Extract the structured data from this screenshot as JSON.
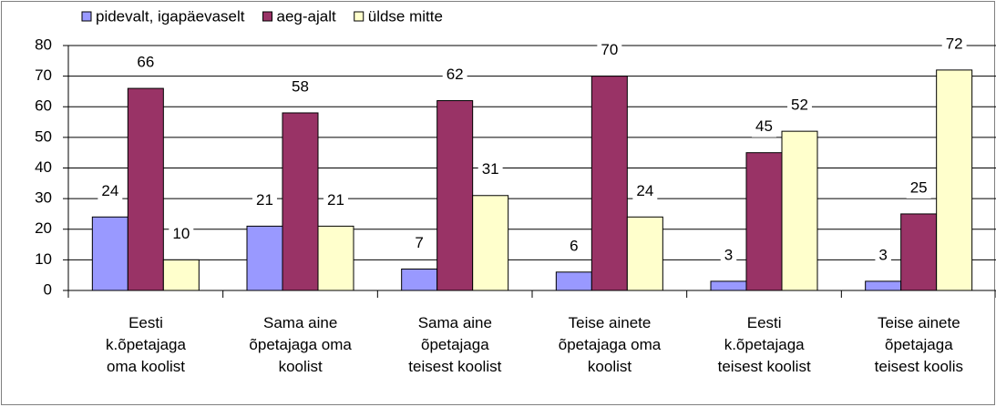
{
  "chart_data": {
    "type": "bar",
    "categories": [
      "Eesti\nk.õpetajaga\noma koolist",
      "Sama aine\nõpetajaga oma\nkoolist",
      "Sama aine\nõpetajaga\nteisest koolist",
      "Teise ainete\nõpetajaga oma\nkoolist",
      "Eesti\nk.õpetajaga\nteisest koolist",
      "Teise ainete\nõpetajaga\nteisest koolis"
    ],
    "series": [
      {
        "name": "pidevalt, igapäevaselt",
        "color": "#9999ff",
        "values": [
          24,
          21,
          7,
          6,
          3,
          3
        ]
      },
      {
        "name": "aeg-ajalt",
        "color": "#993366",
        "values": [
          66,
          58,
          62,
          70,
          45,
          25
        ]
      },
      {
        "name": "üldse mitte",
        "color": "#ffffcc",
        "values": [
          10,
          21,
          31,
          24,
          52,
          72
        ]
      }
    ],
    "ylim": [
      0,
      80
    ],
    "yticks": [
      0,
      10,
      20,
      30,
      40,
      50,
      60,
      70,
      80
    ],
    "grid": true,
    "legend": "top"
  }
}
